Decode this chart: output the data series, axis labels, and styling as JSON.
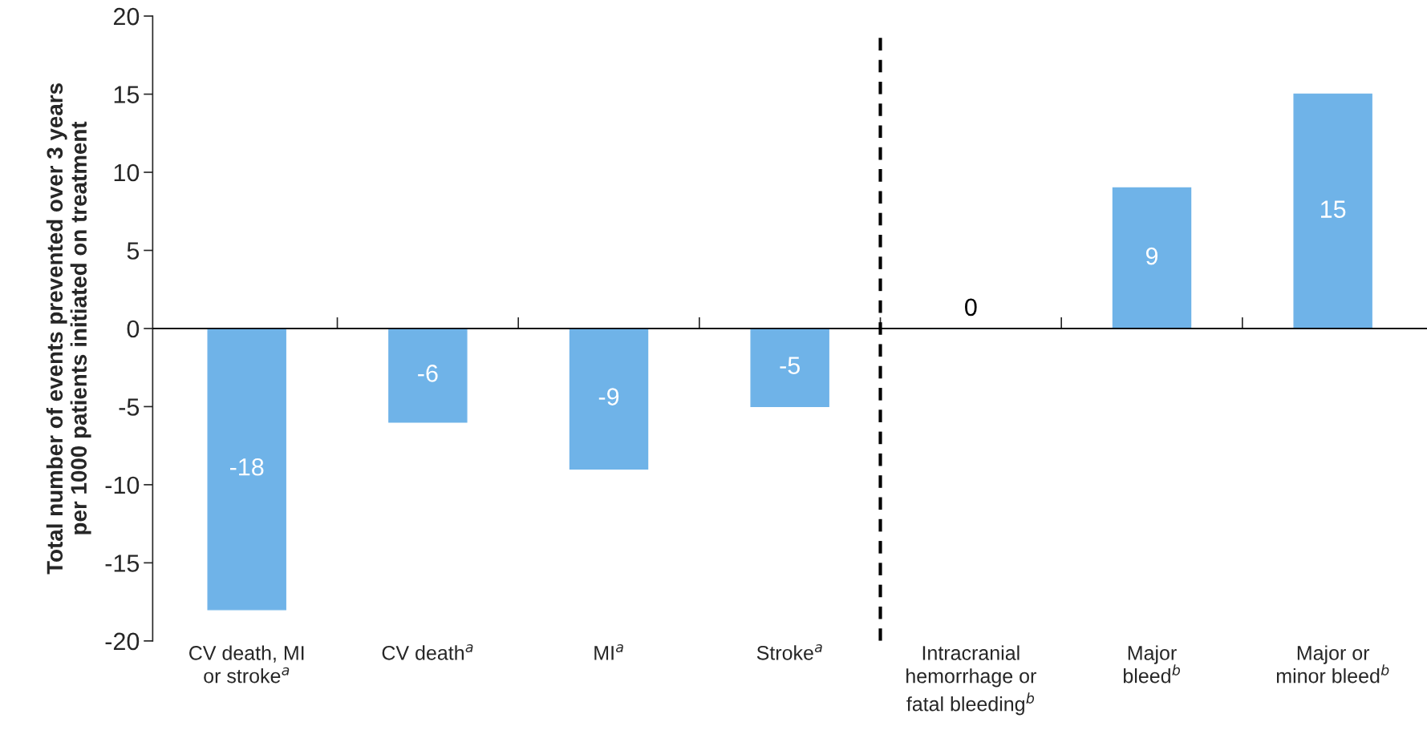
{
  "chart_data": {
    "type": "bar",
    "ylabel": "Total number of events prevented over 3 years\nper 1000 patients initiated on treatment",
    "categories": [
      "CV death, MI\nor stroke$^{a}$",
      "CV death$^{a}$",
      "MI$^{a}$",
      "Stroke$^{a}$",
      "Intracranial\nhemorrhage or\nfatal bleeding$^{b}$",
      "Major\nbleed$^{b}$",
      "Major or\nminor bleed$^{b}$"
    ],
    "values": [
      -18,
      -6,
      -9,
      -5,
      0,
      9,
      15
    ],
    "color": "#6fb3e8",
    "data_labels": true,
    "ylim": [
      -20,
      20
    ],
    "yticks": [
      -20,
      -15,
      -10,
      -5,
      0,
      5,
      10,
      15,
      20
    ],
    "grid": false,
    "legend": false
  }
}
